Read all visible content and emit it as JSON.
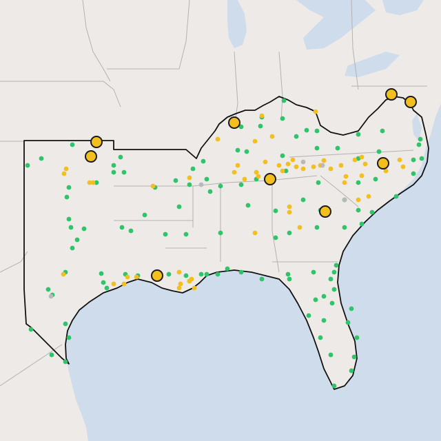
{
  "map": {
    "basemap": "light-gray",
    "colors": {
      "land": "#eeeae7",
      "water": "#cfdceb",
      "green_site": "#2ec46a",
      "yellow_site": "#f2bf1f",
      "gray_site": "#b9b9b9",
      "major_marker": "#f2bf1f",
      "outline": "#111111"
    },
    "legend": []
  },
  "markers": {
    "green_count": 120,
    "yellow_count": 60,
    "major_count": 10
  }
}
